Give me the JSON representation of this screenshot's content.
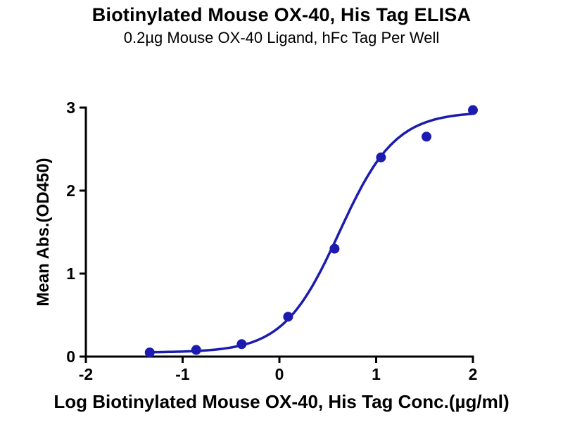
{
  "title": "Biotinylated Mouse OX-40, His Tag ELISA",
  "subtitle": "0.2µg Mouse OX-40 Ligand, hFc Tag Per Well",
  "chart_data": {
    "type": "scatter",
    "title": "Biotinylated Mouse OX-40, His Tag ELISA",
    "subtitle": "0.2µg Mouse OX-40 Ligand, hFc Tag Per Well",
    "xlabel": "Log Biotinylated Mouse OX-40, His Tag Conc.(µg/ml)",
    "ylabel": "Mean Abs.(OD450)",
    "xlim": [
      -2,
      2
    ],
    "ylim": [
      0,
      3
    ],
    "x_ticks": [
      -2,
      -1,
      0,
      1,
      2
    ],
    "y_ticks": [
      0,
      1,
      2,
      3
    ],
    "grid": false,
    "legend": "none",
    "axis_color": "#000000",
    "series": [
      {
        "name": "Biotinylated Mouse OX-40, His Tag",
        "color": "#1b1bb0",
        "marker": "circle",
        "points": [
          [
            -1.34,
            0.05
          ],
          [
            -0.86,
            0.08
          ],
          [
            -0.39,
            0.15
          ],
          [
            0.09,
            0.48
          ],
          [
            0.57,
            1.3
          ],
          [
            1.05,
            2.4
          ],
          [
            1.52,
            2.65
          ],
          [
            2.0,
            2.97
          ]
        ]
      }
    ],
    "fit_curve": {
      "model": "4PL-sigmoid",
      "bottom": 0.05,
      "top": 2.95,
      "logEC50": 0.62,
      "hillslope": 1.5,
      "x_range": [
        -1.34,
        2.0
      ],
      "color": "#1b1bb0"
    }
  }
}
